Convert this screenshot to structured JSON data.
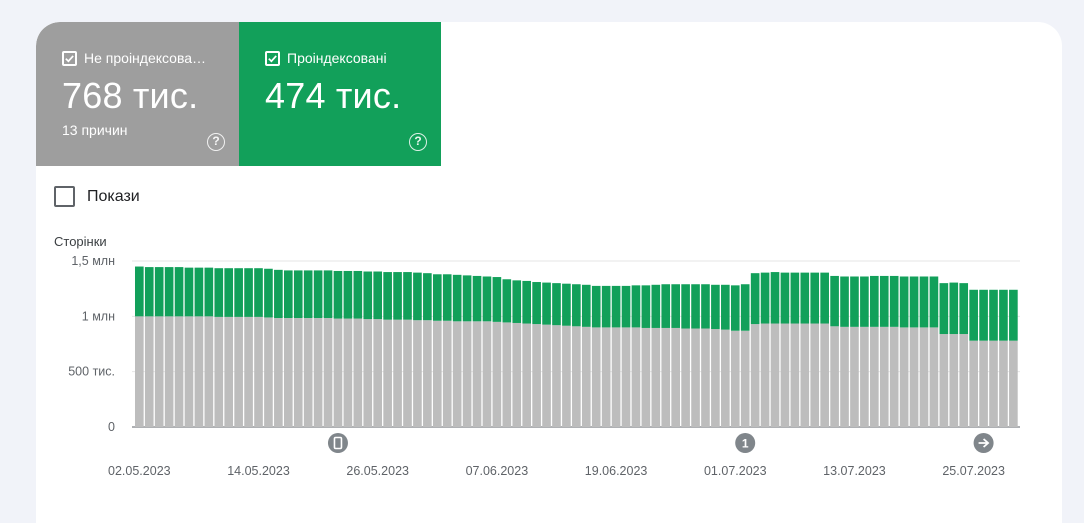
{
  "tiles": [
    {
      "label": "Не проіндексова…",
      "value": "768 тис.",
      "sub": "13 причин",
      "checked": true,
      "color": "#9e9e9e"
    },
    {
      "label": "Проіндексовані",
      "value": "474 тис.",
      "sub": "",
      "checked": true,
      "color": "#12a05a"
    }
  ],
  "help_glyph": "?",
  "show_toggle": {
    "label": "Покази",
    "checked": false
  },
  "chart_data": {
    "type": "bar",
    "stacked": true,
    "ylabel": "Сторінки",
    "ylim": [
      0,
      1500000
    ],
    "yticks": [
      {
        "value": 0,
        "label": "0"
      },
      {
        "value": 500000,
        "label": "500 тис."
      },
      {
        "value": 1000000,
        "label": "1 млн"
      },
      {
        "value": 1500000,
        "label": "1,5 млн"
      }
    ],
    "x_tick_labels": [
      {
        "index": 0,
        "label": "02.05.2023"
      },
      {
        "index": 12,
        "label": "14.05.2023"
      },
      {
        "index": 24,
        "label": "26.05.2023"
      },
      {
        "index": 36,
        "label": "07.06.2023"
      },
      {
        "index": 48,
        "label": "19.06.2023"
      },
      {
        "index": 60,
        "label": "01.07.2023"
      },
      {
        "index": 72,
        "label": "13.07.2023"
      },
      {
        "index": 84,
        "label": "25.07.2023"
      }
    ],
    "annotations": [
      {
        "index": 20,
        "icon": "phone-icon",
        "text": ""
      },
      {
        "index": 61,
        "icon": "",
        "text": "1"
      },
      {
        "index": 85,
        "icon": "arrow-right-icon",
        "text": ""
      }
    ],
    "grid": true,
    "series": [
      {
        "key": "not_indexed",
        "color": "#bdbdbd",
        "values": [
          1000000,
          1000000,
          1000000,
          1000000,
          1000000,
          1000000,
          1000000,
          1000000,
          995000,
          995000,
          995000,
          995000,
          995000,
          990000,
          985000,
          985000,
          985000,
          985000,
          985000,
          985000,
          980000,
          980000,
          980000,
          975000,
          975000,
          970000,
          970000,
          970000,
          965000,
          965000,
          960000,
          960000,
          955000,
          955000,
          955000,
          955000,
          950000,
          945000,
          940000,
          935000,
          930000,
          925000,
          920000,
          915000,
          910000,
          905000,
          900000,
          900000,
          900000,
          900000,
          900000,
          895000,
          895000,
          895000,
          895000,
          890000,
          890000,
          890000,
          885000,
          880000,
          870000,
          870000,
          930000,
          935000,
          935000,
          935000,
          935000,
          935000,
          935000,
          935000,
          910000,
          905000,
          905000,
          905000,
          905000,
          905000,
          905000,
          900000,
          900000,
          900000,
          900000,
          840000,
          840000,
          840000,
          780000,
          780000,
          780000,
          780000,
          780000
        ]
      },
      {
        "key": "indexed",
        "color": "#12a05a",
        "values": [
          450000,
          445000,
          445000,
          445000,
          445000,
          440000,
          440000,
          440000,
          440000,
          440000,
          440000,
          440000,
          440000,
          440000,
          435000,
          430000,
          430000,
          430000,
          430000,
          430000,
          430000,
          430000,
          430000,
          430000,
          430000,
          430000,
          430000,
          430000,
          430000,
          425000,
          420000,
          420000,
          420000,
          415000,
          410000,
          405000,
          405000,
          390000,
          385000,
          385000,
          380000,
          380000,
          380000,
          380000,
          380000,
          380000,
          375000,
          375000,
          375000,
          375000,
          380000,
          385000,
          390000,
          395000,
          395000,
          400000,
          400000,
          400000,
          400000,
          405000,
          410000,
          420000,
          460000,
          460000,
          465000,
          460000,
          460000,
          460000,
          460000,
          460000,
          455000,
          455000,
          455000,
          455000,
          460000,
          460000,
          460000,
          460000,
          460000,
          460000,
          460000,
          460000,
          465000,
          460000,
          460000,
          460000,
          460000,
          460000,
          460000
        ]
      }
    ]
  }
}
